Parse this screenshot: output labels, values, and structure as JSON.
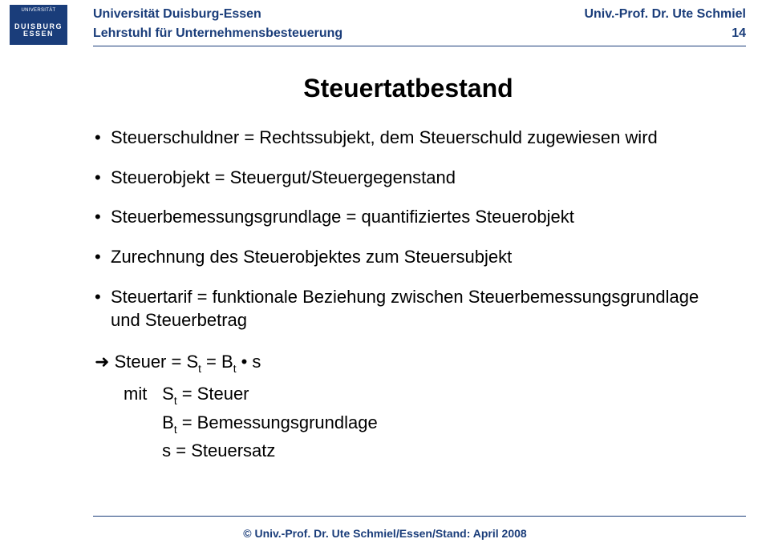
{
  "header": {
    "logo_top": "UNIVERSITÄT",
    "logo_line1": "DUISBURG",
    "logo_line2": "ESSEN",
    "uni": "Universität Duisburg-Essen",
    "chair": "Lehrstuhl für Unternehmensbesteuerung",
    "prof": "Univ.-Prof. Dr. Ute Schmiel",
    "pagenum": "14"
  },
  "title": "Steuertatbestand",
  "bullets": [
    "Steuerschuldner = Rechtssubjekt, dem Steuerschuld zugewiesen wird",
    "Steuerobjekt = Steuergut/Steuergegenstand",
    "Steuerbemessungsgrundlage = quantifiziertes Steuerobjekt",
    "Zurechnung des Steuerobjektes zum Steuersubjekt",
    "Steuertarif = funktionale Beziehung zwischen Steuerbemessungsgrundlage und Steuerbetrag"
  ],
  "formula": {
    "line": "Steuer = S",
    "sub_t": "t",
    "eq": " = B",
    "dot_s": " • s",
    "mit": "mit",
    "St_lhs": "S",
    "St_rhs": " = Steuer",
    "Bt_lhs": "B",
    "Bt_rhs": " = Bemessungsgrundlage",
    "s_lhs": "s",
    "s_rhs": "  = Steuersatz"
  },
  "footer": "© Univ.-Prof. Dr. Ute Schmiel/Essen/Stand: April 2008",
  "colors": {
    "brand": "#1a3d7a",
    "text": "#000000",
    "bg": "#ffffff"
  }
}
